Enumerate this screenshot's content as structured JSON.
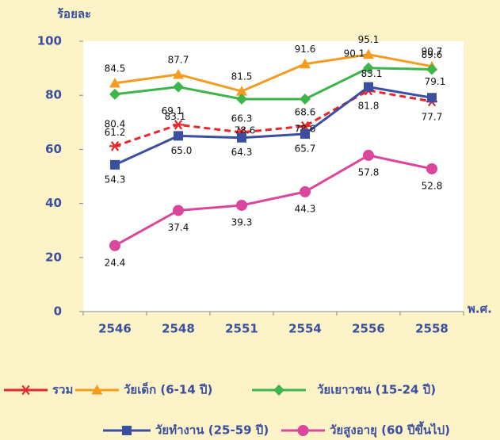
{
  "chart_data": {
    "type": "line",
    "y_label": "ร้อยละ",
    "x_label": "พ.ศ.",
    "categories": [
      "2546",
      "2548",
      "2551",
      "2554",
      "2556",
      "2558"
    ],
    "ylim": [
      0,
      100
    ],
    "yticks": [
      0,
      20,
      40,
      60,
      80,
      100
    ],
    "series": [
      {
        "name": "รวม",
        "color": "#e8262b",
        "marker": "star",
        "dashed": true,
        "values": [
          61.2,
          69.1,
          66.3,
          68.6,
          81.8,
          77.7
        ]
      },
      {
        "name": "วัยเด็ก (6-14 ปี)",
        "color": "#f39c1f",
        "marker": "triangle",
        "values": [
          84.5,
          87.7,
          81.5,
          91.6,
          95.1,
          90.7
        ]
      },
      {
        "name": "วัยเยาวชน (15-24 ปี)",
        "color": "#3cb54a",
        "marker": "diamond",
        "values": [
          80.4,
          83.1,
          78.6,
          78.6,
          90.1,
          89.6
        ]
      },
      {
        "name": "วัยทำงาน (25-59 ปี)",
        "color": "#3a4fa0",
        "marker": "square",
        "values": [
          54.3,
          65.0,
          64.3,
          65.7,
          83.1,
          79.1
        ],
        "value_labels": [
          "54.3",
          "65.0",
          "64.3",
          "65.7",
          "83.1",
          "79.1"
        ]
      },
      {
        "name": "วัยสูงอายุ (60 ปีขึ้นไป)",
        "color": "#d9469b",
        "marker": "circle",
        "values": [
          24.4,
          37.4,
          39.3,
          44.3,
          57.8,
          52.8
        ]
      }
    ]
  }
}
